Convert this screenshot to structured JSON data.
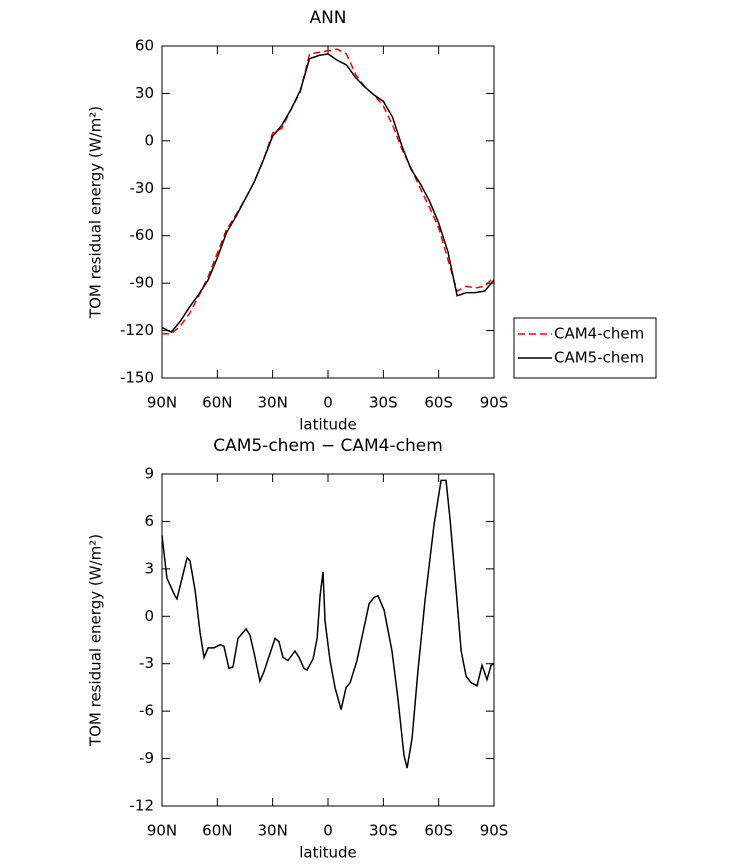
{
  "chart_data": [
    {
      "type": "line",
      "title": "ANN",
      "x_label": "latitude",
      "y_label": "TOM residual energy (W/m²)",
      "x": [
        90,
        85,
        80,
        75,
        70,
        65,
        60,
        55,
        50,
        45,
        40,
        35,
        30,
        25,
        20,
        15,
        10,
        5,
        0,
        -5,
        -10,
        -15,
        -20,
        -25,
        -30,
        -35,
        -40,
        -45,
        -50,
        -55,
        -60,
        -65,
        -70,
        -75,
        -80,
        -85,
        -90
      ],
      "series": [
        {
          "name": "CAM4-chem",
          "color": "#ff0000",
          "line_style": "dashed",
          "values": [
            -122,
            -122,
            -117,
            -109,
            -98,
            -86,
            -71,
            -56,
            -47,
            -37,
            -26,
            -12,
            5,
            8,
            20,
            31,
            55,
            56,
            57,
            58,
            55,
            42,
            34,
            29,
            22,
            10,
            -5,
            -17,
            -30,
            -42,
            -55,
            -75,
            -95,
            -92,
            -93,
            -92,
            -86
          ]
        },
        {
          "name": "CAM5-chem",
          "color": "#000000",
          "line_style": "solid",
          "values": [
            -118,
            -121,
            -114,
            -105,
            -97,
            -88,
            -74,
            -58,
            -48,
            -37,
            -26,
            -12,
            3,
            10,
            20,
            32,
            52,
            54,
            55,
            51,
            48,
            40,
            34,
            29,
            25,
            15,
            -3,
            -18,
            -27,
            -38,
            -52,
            -70,
            -98,
            -96,
            -96,
            -95,
            -88
          ]
        }
      ],
      "xlim": [
        90,
        -90
      ],
      "xticks": [
        {
          "value": 90,
          "label": "90N"
        },
        {
          "value": 60,
          "label": "60N"
        },
        {
          "value": 30,
          "label": "30N"
        },
        0,
        {
          "value": -30,
          "label": "30S"
        },
        {
          "value": -60,
          "label": "60S"
        },
        {
          "value": -90,
          "label": "90S"
        }
      ],
      "ylim": [
        -150,
        60
      ],
      "yticks": [
        -150,
        -120,
        -90,
        -60,
        -30,
        0,
        30,
        60
      ],
      "legend": "right"
    },
    {
      "type": "line",
      "title": "CAM5-chem − CAM4-chem",
      "x_label": "latitude",
      "y_label": "TOM residual energy (W/m²)",
      "x": [
        90,
        87.3,
        83,
        81.9,
        76.4,
        74.8,
        72,
        69.4,
        67.2,
        65,
        61.8,
        58.5,
        56.4,
        53.7,
        51.5,
        48.8,
        44.4,
        42.3,
        40.1,
        36.9,
        34.7,
        28.7,
        26.6,
        24.4,
        21.7,
        17.9,
        15.7,
        13,
        11.4,
        8.1,
        5.9,
        4.3,
        2.7,
        1.6,
        -1.1,
        -3.8,
        -7.1,
        -9.8,
        -12,
        -15.7,
        -19,
        -22.3,
        -25,
        -27.1,
        -30.4,
        -34.7,
        -38,
        -41.2,
        -42.9,
        -45.6,
        -48.8,
        -52.6,
        -57.5,
        -61.3,
        -64,
        -66.2,
        -69.5,
        -72.2,
        -74.9,
        -77.6,
        -80.8,
        -83.5,
        -86.2,
        -88.4,
        -90
      ],
      "series": [
        {
          "color": "#000000",
          "line_style": "solid",
          "values": [
            5.1,
            2.4,
            1.3,
            1.1,
            3.7,
            3.5,
            1.6,
            -1,
            -2.6,
            -2,
            -2,
            -1.8,
            -1.9,
            -3.3,
            -3.2,
            -1.4,
            -0.8,
            -1.2,
            -2.3,
            -4.1,
            -3.5,
            -1.4,
            -1.6,
            -2.6,
            -2.8,
            -2.2,
            -2.6,
            -3.3,
            -3.4,
            -2.7,
            -1.4,
            1.3,
            2.8,
            -0.3,
            -2.8,
            -4.5,
            -5.9,
            -4.5,
            -4.2,
            -2.8,
            -1,
            0.8,
            1.2,
            1.3,
            0.4,
            -2.2,
            -5.3,
            -8.8,
            -9.6,
            -7.7,
            -3.4,
            1,
            5.8,
            8.6,
            8.6,
            6.1,
            1.6,
            -2.2,
            -3.8,
            -4.2,
            -4.4,
            -3.1,
            -4,
            -3.1,
            -3
          ]
        }
      ],
      "xlim": [
        90,
        -90
      ],
      "xticks": [
        {
          "value": 90,
          "label": "90N"
        },
        {
          "value": 60,
          "label": "60N"
        },
        {
          "value": 30,
          "label": "30N"
        },
        0,
        {
          "value": -30,
          "label": "30S"
        },
        {
          "value": -60,
          "label": "60S"
        },
        {
          "value": -90,
          "label": "90S"
        }
      ],
      "ylim": [
        -12,
        9
      ],
      "yticks": [
        -12,
        -9,
        -6,
        -3,
        0,
        3,
        6,
        9
      ]
    }
  ]
}
